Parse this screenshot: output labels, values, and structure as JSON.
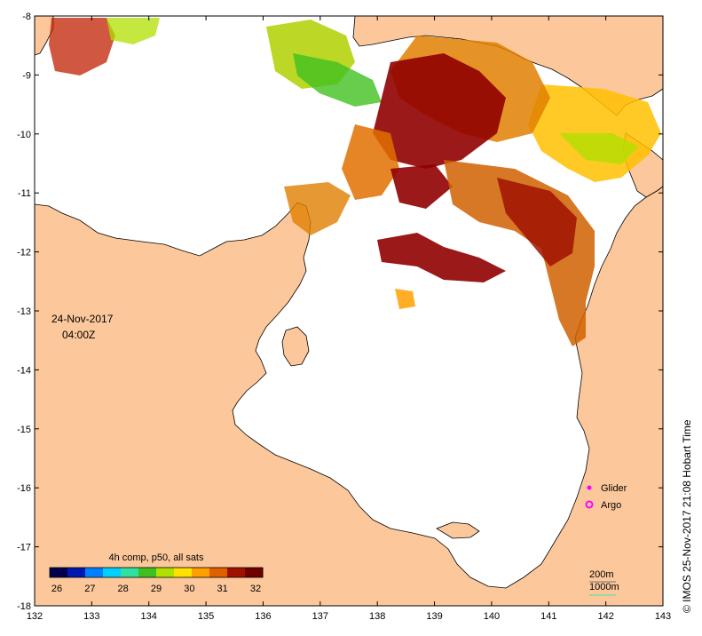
{
  "map": {
    "date_line1": "24-Nov-2017",
    "date_line2": "04:00Z",
    "credit": "© IMOS 25-Nov-2017 21:08 Hobart Time",
    "land_color": "#fcc89b",
    "ocean_color": "#ffffff",
    "frame_color": "#000000"
  },
  "axes": {
    "x_ticks": [
      "132",
      "133",
      "134",
      "135",
      "136",
      "137",
      "138",
      "139",
      "140",
      "141",
      "142",
      "143"
    ],
    "y_ticks": [
      "-8",
      "-9",
      "-10",
      "-11",
      "-12",
      "-13",
      "-14",
      "-15",
      "-16",
      "-17",
      "-18"
    ],
    "x_range": [
      132,
      143
    ],
    "y_range": [
      -18,
      -8
    ]
  },
  "colorbar": {
    "title": "4h comp, p50, all sats",
    "ticks": [
      "26",
      "27",
      "28",
      "29",
      "30",
      "31",
      "32"
    ],
    "range": [
      26,
      32
    ],
    "colors": [
      "#00004c",
      "#0018b0",
      "#0080ff",
      "#00d0ff",
      "#30e0a0",
      "#40c020",
      "#b0e000",
      "#ffe000",
      "#ffa000",
      "#e06000",
      "#a01000",
      "#700000"
    ]
  },
  "markers": {
    "glider_label": "Glider",
    "argo_label": "Argo",
    "marker_color": "#ff00ff"
  },
  "depth_legend": {
    "line1": "200m",
    "line2": "1000m",
    "line1_color": "#707070",
    "line2_color": "#40e0a0"
  }
}
